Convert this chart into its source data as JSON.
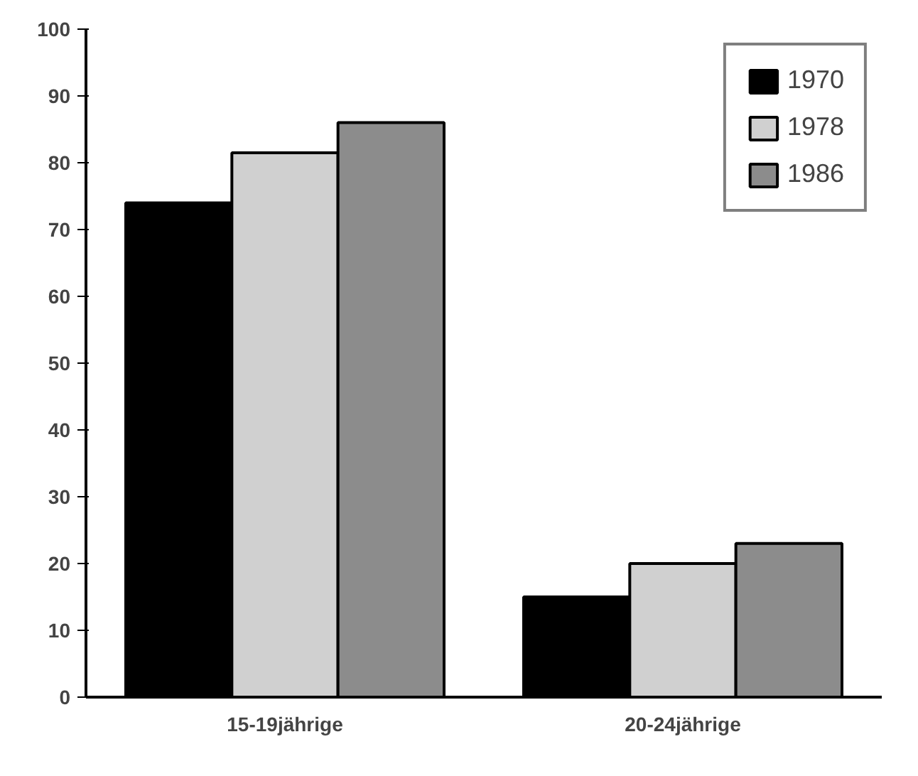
{
  "chart_data": {
    "type": "bar",
    "categories": [
      "15-19jährige",
      "20-24jährige"
    ],
    "series": [
      {
        "name": "1970",
        "color": "#000000",
        "values": [
          74,
          15
        ]
      },
      {
        "name": "1978",
        "color": "#d0d0d0",
        "values": [
          81.5,
          20
        ]
      },
      {
        "name": "1986",
        "color": "#8c8c8c",
        "values": [
          86,
          23
        ]
      }
    ],
    "ylim": [
      0,
      100
    ],
    "yticks": [
      0,
      10,
      20,
      30,
      40,
      50,
      60,
      70,
      80,
      90,
      100
    ],
    "grid": false,
    "legend": "top right"
  }
}
